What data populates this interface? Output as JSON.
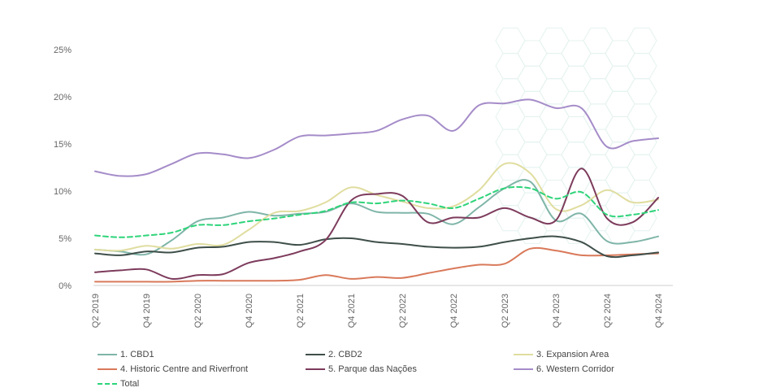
{
  "chart_data": {
    "type": "line",
    "title": "",
    "xlabel": "",
    "ylabel": "",
    "ylim": [
      0,
      25
    ],
    "yticks": [
      "0%",
      "5%",
      "10%",
      "15%",
      "20%",
      "25%"
    ],
    "ytick_values": [
      0,
      5,
      10,
      15,
      20,
      25
    ],
    "x": [
      "Q2 2019",
      "Q3 2019",
      "Q4 2019",
      "Q1 2020",
      "Q2 2020",
      "Q3 2020",
      "Q4 2020",
      "Q1 2021",
      "Q2 2021",
      "Q3 2021",
      "Q4 2021",
      "Q1 2022",
      "Q2 2022",
      "Q3 2022",
      "Q4 2022",
      "Q1 2023",
      "Q2 2023",
      "Q3 2023",
      "Q4 2023",
      "Q1 2024",
      "Q2 2024",
      "Q3 2024",
      "Q4 2024"
    ],
    "xticks": [
      "Q2 2019",
      "Q4 2019",
      "Q2 2020",
      "Q4 2020",
      "Q2 2021",
      "Q4 2021",
      "Q2 2022",
      "Q4 2022",
      "Q2 2023",
      "Q4 2023",
      "Q2 2024",
      "Q4 2024"
    ],
    "grid": false,
    "legend_position": "bottom",
    "series": [
      {
        "name": "1. CBD1",
        "color": "#7fb5a8",
        "dashed": false,
        "values": [
          3.8,
          3.6,
          3.3,
          4.8,
          6.8,
          7.2,
          7.8,
          7.4,
          7.6,
          7.8,
          8.7,
          7.8,
          7.7,
          7.6,
          6.5,
          8.3,
          10.3,
          11.0,
          6.9,
          7.6,
          4.7,
          4.6,
          5.2
        ]
      },
      {
        "name": "2. CBD2",
        "color": "#3f4f4a",
        "dashed": false,
        "values": [
          3.4,
          3.2,
          3.6,
          3.5,
          4.0,
          4.1,
          4.6,
          4.6,
          4.3,
          4.9,
          5.0,
          4.6,
          4.4,
          4.1,
          4.0,
          4.1,
          4.6,
          5.0,
          5.2,
          4.6,
          3.1,
          3.2,
          3.5
        ]
      },
      {
        "name": "3. Expansion Area",
        "color": "#e0dda0",
        "dashed": false,
        "values": [
          3.8,
          3.7,
          4.2,
          3.9,
          4.4,
          4.3,
          5.9,
          7.7,
          7.9,
          8.8,
          10.4,
          9.6,
          8.9,
          8.2,
          8.4,
          10.1,
          12.9,
          11.9,
          8.1,
          8.5,
          10.1,
          8.8,
          9.1
        ]
      },
      {
        "name": "4. Historic Centre and Riverfront",
        "color": "#d9795a",
        "dashed": false,
        "values": [
          0.4,
          0.4,
          0.4,
          0.4,
          0.5,
          0.5,
          0.5,
          0.5,
          0.6,
          1.1,
          0.7,
          0.9,
          0.8,
          1.3,
          1.8,
          2.2,
          2.3,
          3.9,
          3.7,
          3.2,
          3.2,
          3.3,
          3.4
        ]
      },
      {
        "name": "5. Parque das Nações",
        "color": "#7d3b5c",
        "dashed": false,
        "values": [
          1.4,
          1.6,
          1.7,
          0.7,
          1.1,
          1.2,
          2.4,
          2.9,
          3.6,
          4.8,
          9.0,
          9.7,
          9.5,
          6.7,
          7.2,
          7.2,
          8.2,
          7.2,
          6.9,
          12.4,
          7.1,
          6.7,
          9.3
        ]
      },
      {
        "name": "6. Western Corridor",
        "color": "#a58cc9",
        "dashed": false,
        "values": [
          12.1,
          11.6,
          11.8,
          12.9,
          14.0,
          13.9,
          13.5,
          14.4,
          15.8,
          15.9,
          16.1,
          16.4,
          17.6,
          18.0,
          16.4,
          19.1,
          19.3,
          19.7,
          18.8,
          18.8,
          14.7,
          15.3,
          15.6
        ]
      },
      {
        "name": "Total",
        "color": "#2ed47a",
        "dashed": true,
        "values": [
          5.3,
          5.1,
          5.3,
          5.6,
          6.4,
          6.4,
          6.8,
          7.1,
          7.5,
          7.9,
          8.8,
          8.7,
          9.0,
          8.7,
          8.2,
          9.2,
          10.3,
          10.3,
          9.2,
          9.9,
          7.5,
          7.5,
          8.0
        ]
      }
    ]
  }
}
